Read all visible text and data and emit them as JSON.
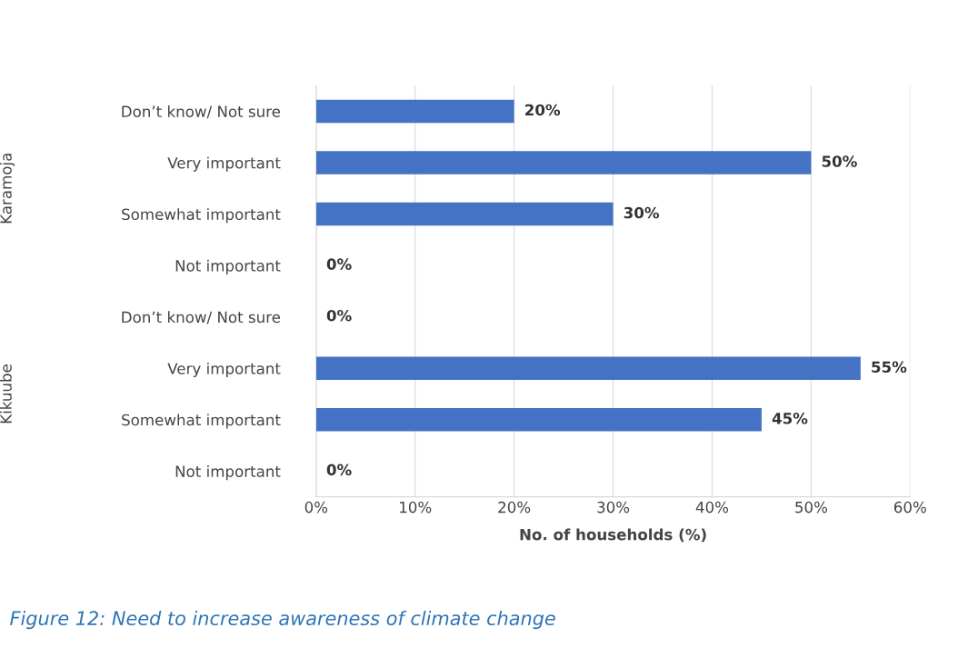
{
  "chart_data": {
    "type": "bar",
    "orientation": "horizontal",
    "xlabel": "No. of households (%)",
    "categories": [
      "Don’t know/ Not sure",
      "Very important",
      "Somewhat important",
      "Not important",
      "Don’t know/ Not sure",
      "Very important",
      "Somewhat important",
      "Not important"
    ],
    "values": [
      20,
      50,
      30,
      0,
      0,
      55,
      45,
      0
    ],
    "value_labels": [
      "20%",
      "50%",
      "30%",
      "0%",
      "0%",
      "55%",
      "45%",
      "0%"
    ],
    "color": "#4472c4",
    "xlim": [
      0,
      60
    ],
    "xticks": [
      {
        "value": 0,
        "label": "0%"
      },
      {
        "value": 10,
        "label": "10%"
      },
      {
        "value": 20,
        "label": "20%"
      },
      {
        "value": 30,
        "label": "30%"
      },
      {
        "value": 40,
        "label": "40%"
      },
      {
        "value": 50,
        "label": "50%"
      },
      {
        "value": 60,
        "label": "60%"
      }
    ],
    "grid": "x",
    "annotations": [
      "Karamoja",
      "Kikuube",
      "Figure 12: Need to increase awareness of climate change"
    ]
  }
}
